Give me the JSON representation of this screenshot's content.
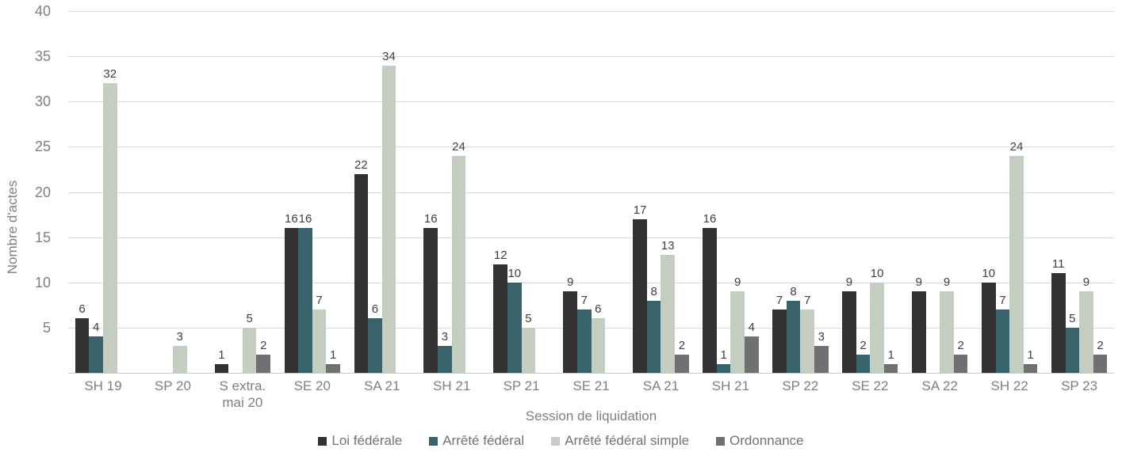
{
  "styles": {
    "background": "#ffffff",
    "grid_color": "#d9d9d9",
    "baseline_color": "#c6c6c6",
    "axis_text_color": "#7f7f7f",
    "data_label_color": "#404040",
    "legend_text_color": "#737373"
  },
  "chart_data": {
    "type": "bar",
    "xlabel": "Session de liquidation",
    "ylabel": "Nombre d'actes",
    "ylim": [
      0,
      40
    ],
    "ytick_interval": 5,
    "grid": true,
    "legend_position": "bottom",
    "data_labels": true,
    "categories": [
      "SH 19",
      "SP 20",
      "S extra.\nmai 20",
      "SE 20",
      "SA 21",
      "SH 21",
      "SP 21",
      "SE 21",
      "SA 21",
      "SH 21",
      "SP 22",
      "SE 22",
      "SA 22",
      "SH 22",
      "SP 23"
    ],
    "series": [
      {
        "name": "Loi fédérale",
        "color": "#343132",
        "values": [
          6,
          0,
          1,
          16,
          22,
          16,
          12,
          9,
          17,
          16,
          7,
          9,
          9,
          10,
          11
        ]
      },
      {
        "name": "Arrêté fédéral",
        "color": "#38636b",
        "values": [
          4,
          0,
          0,
          16,
          6,
          3,
          10,
          7,
          8,
          1,
          8,
          2,
          0,
          7,
          5
        ]
      },
      {
        "name": "Arrêté fédéral simple",
        "color": "#c3cec0",
        "values": [
          32,
          3,
          5,
          7,
          34,
          24,
          5,
          6,
          13,
          9,
          7,
          10,
          9,
          24,
          9
        ]
      },
      {
        "name": "Ordonnance",
        "color": "#717070",
        "values": [
          0,
          0,
          2,
          1,
          0,
          0,
          0,
          0,
          2,
          4,
          3,
          1,
          2,
          1,
          2
        ]
      }
    ]
  }
}
